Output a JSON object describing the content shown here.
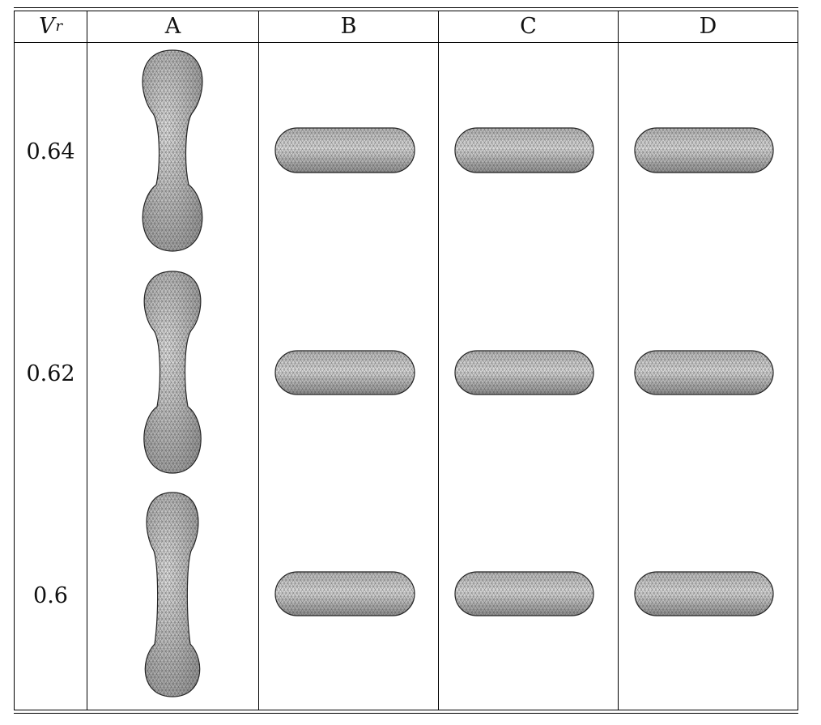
{
  "table": {
    "header": {
      "variable_symbol": "V",
      "variable_subscript": "r",
      "columns": [
        "A",
        "B",
        "C",
        "D"
      ]
    },
    "rows": [
      {
        "vr": "0.64"
      },
      {
        "vr": "0.62"
      },
      {
        "vr": "0.6"
      }
    ],
    "shape_types": {
      "A": "elongated-dumbbell-mesh",
      "B": "flat-torus-mesh",
      "C": "flat-torus-mesh",
      "D": "flat-torus-mesh"
    }
  },
  "colors": {
    "mesh_fill": "#c9c9c9",
    "mesh_line": "#222222"
  }
}
